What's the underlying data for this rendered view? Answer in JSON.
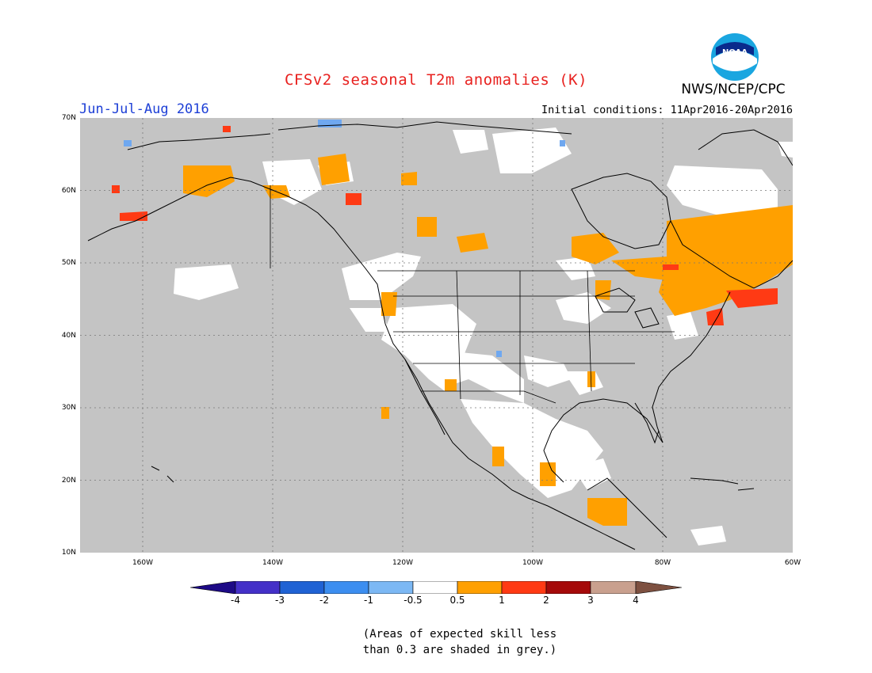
{
  "header": {
    "title": "CFSv2 seasonal T2m anomalies (K)",
    "agency": "NWS/NCEP/CPC",
    "season": "Jun-Jul-Aug 2016",
    "initial_conditions": "Initial conditions: 11Apr2016-20Apr2016",
    "logo_text": "NOAA"
  },
  "map": {
    "lat_labels": [
      "70N",
      "60N",
      "50N",
      "40N",
      "30N",
      "20N",
      "10N"
    ],
    "lon_labels": [
      "160W",
      "140W",
      "120W",
      "100W",
      "80W",
      "60W"
    ],
    "colors": {
      "grey_low_skill": "#c4c4c4",
      "land_outline": "#000000",
      "neutral": "#ffffff",
      "warm_05_1": "#ffa000",
      "warm_1_2": "#ff3a14",
      "cool_05_1": "#6fa8f0"
    }
  },
  "colorbar": {
    "labels": [
      "-4",
      "-3",
      "-2",
      "-1",
      "-0.5",
      "0.5",
      "1",
      "2",
      "3",
      "4"
    ],
    "colors": [
      "#1d0a86",
      "#4430c8",
      "#1f62d4",
      "#3c8ef0",
      "#7cb8f4",
      "#ffffff",
      "#ffa000",
      "#ff3a14",
      "#a50a0a",
      "#c9a08e",
      "#7d5040"
    ]
  },
  "note": {
    "line1": "(Areas of expected skill less",
    "line2": "than 0.3 are shaded in grey.)"
  }
}
